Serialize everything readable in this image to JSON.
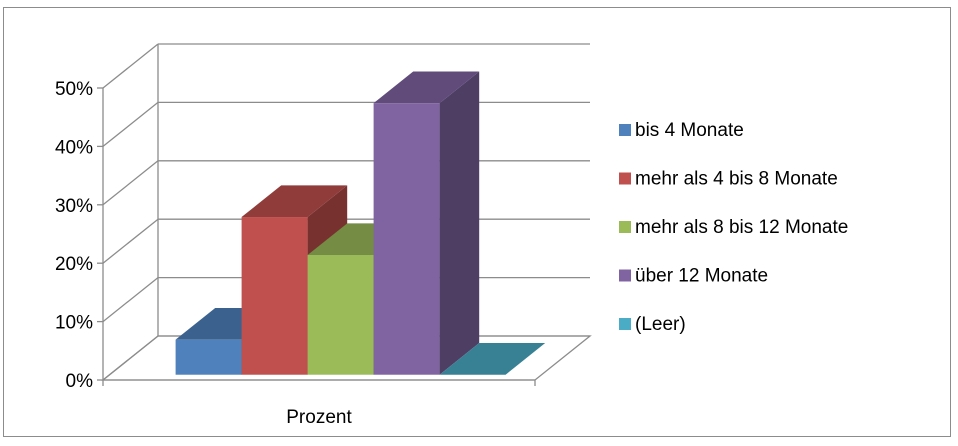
{
  "chart_data": {
    "type": "bar",
    "categories": [
      "Prozent"
    ],
    "series": [
      {
        "name": "bis 4 Monate",
        "values": [
          6
        ],
        "color": "#4F81BD"
      },
      {
        "name": "mehr als 4 bis 8 Monate",
        "values": [
          27
        ],
        "color": "#C0504D"
      },
      {
        "name": "mehr als 8 bis 12 Monate",
        "values": [
          20.5
        ],
        "color": "#9BBB59"
      },
      {
        "name": "über 12 Monate",
        "values": [
          46.5
        ],
        "color": "#8064A2"
      },
      {
        "name": "(Leer)",
        "values": [
          0
        ],
        "color": "#4BACC6"
      }
    ],
    "yticks": [
      "0%",
      "10%",
      "20%",
      "30%",
      "40%",
      "50%"
    ],
    "ylim": [
      0,
      50
    ],
    "grid": true,
    "legend": "right",
    "style": "3d-column"
  }
}
